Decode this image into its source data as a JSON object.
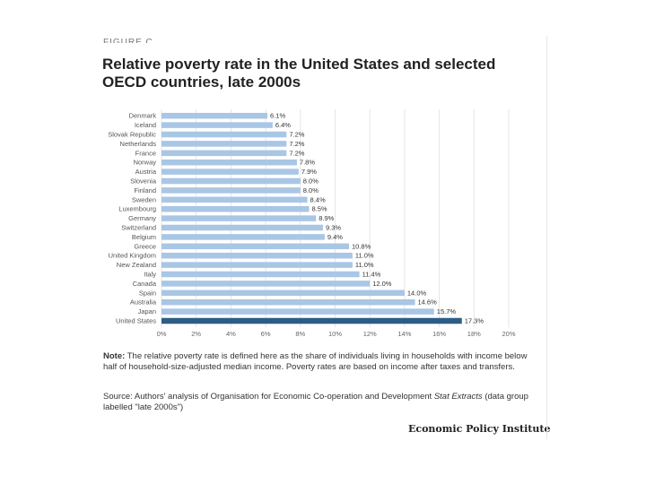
{
  "figure_label": "FIGURE C",
  "note": {
    "label": "Note:",
    "text": " The relative poverty rate is defined here as the share of individuals living in households with income below half of household-size-adjusted median income. Poverty rates are based on income after taxes and transfers."
  },
  "source": {
    "label": "Source:",
    "text": " Authors' analysis of Organisation for Economic Co-operation and Development ",
    "italic": "Stat Extracts",
    "tail": " (data group labelled \"late 2000s\")"
  },
  "publisher": "Economic Policy Institute",
  "colors": {
    "bar": "#a9c6e5",
    "highlight": "#2c5d86",
    "grid": "#e6e6e6",
    "text": "#333333"
  },
  "chart_data": {
    "type": "bar",
    "orientation": "horizontal",
    "title": "Relative poverty rate in the United States and selected OECD countries, late 2000s",
    "categories": [
      "Denmark",
      "Iceland",
      "Slovak Republic",
      "Netherlands",
      "France",
      "Norway",
      "Austria",
      "Slovenia",
      "Finland",
      "Sweden",
      "Luxembourg",
      "Germany",
      "Switzerland",
      "Belgium",
      "Greece",
      "United Kingdom",
      "New Zealand",
      "Italy",
      "Canada",
      "Spain",
      "Australia",
      "Japan",
      "United States"
    ],
    "values": [
      6.1,
      6.4,
      7.2,
      7.2,
      7.2,
      7.8,
      7.9,
      8.0,
      8.0,
      8.4,
      8.5,
      8.9,
      9.3,
      9.4,
      10.8,
      11.0,
      11.0,
      11.4,
      12.0,
      14.0,
      14.6,
      15.7,
      17.3
    ],
    "value_labels": [
      "6.1%",
      "6.4%",
      "7.2%",
      "7.2%",
      "7.2%",
      "7.8%",
      "7.9%",
      "8.0%",
      "8.0%",
      "8.4%",
      "8.5%",
      "8.9%",
      "9.3%",
      "9.4%",
      "10.8%",
      "11.0%",
      "11.0%",
      "11.4%",
      "12.0%",
      "14.0%",
      "14.6%",
      "15.7%",
      "17.3%"
    ],
    "highlight": "United States",
    "xlim": [
      0,
      20
    ],
    "xticks": [
      "0%",
      "2%",
      "4%",
      "6%",
      "8%",
      "10%",
      "12%",
      "14%",
      "16%",
      "18%",
      "20%"
    ],
    "xlabel": "",
    "ylabel": "",
    "grid": true
  }
}
